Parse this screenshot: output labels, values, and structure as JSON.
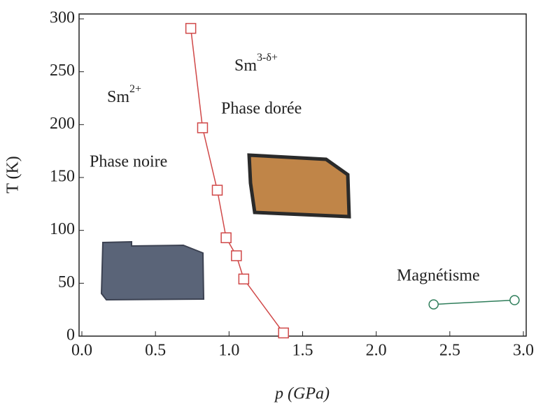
{
  "chart_data": {
    "type": "line",
    "x_label": "p (GPa)",
    "y_label": "T (K)",
    "xlim": [
      0,
      3
    ],
    "ylim": [
      0,
      300
    ],
    "xticks": [
      {
        "value": 0,
        "label": "0.0"
      },
      {
        "value": 0.5,
        "label": "0.5"
      },
      {
        "value": 1,
        "label": "1.0"
      },
      {
        "value": 1.5,
        "label": "1.5"
      },
      {
        "value": 2,
        "label": "2.0"
      },
      {
        "value": 2.5,
        "label": "2.5"
      },
      {
        "value": 3,
        "label": "3.0"
      }
    ],
    "yticks": [
      0,
      50,
      100,
      150,
      200,
      250,
      300
    ],
    "series": [
      {
        "color": "#d04848",
        "marker": "square",
        "x": [
          0.74,
          0.82,
          0.92,
          0.98,
          1.05,
          1.1,
          1.37
        ],
        "values": [
          291,
          197,
          138,
          93,
          76,
          54,
          3
        ]
      },
      {
        "color": "#2e7d5a",
        "marker": "circle",
        "x": [
          2.39,
          2.94
        ],
        "values": [
          30,
          34
        ]
      }
    ],
    "annotations": [
      {
        "text": "Sm",
        "sup": "2+"
      },
      {
        "text": "Phase noire"
      },
      {
        "text": "Sm",
        "sup": "3-δ+"
      },
      {
        "text": "Phase dorée"
      },
      {
        "text": "Magnétisme"
      }
    ]
  }
}
